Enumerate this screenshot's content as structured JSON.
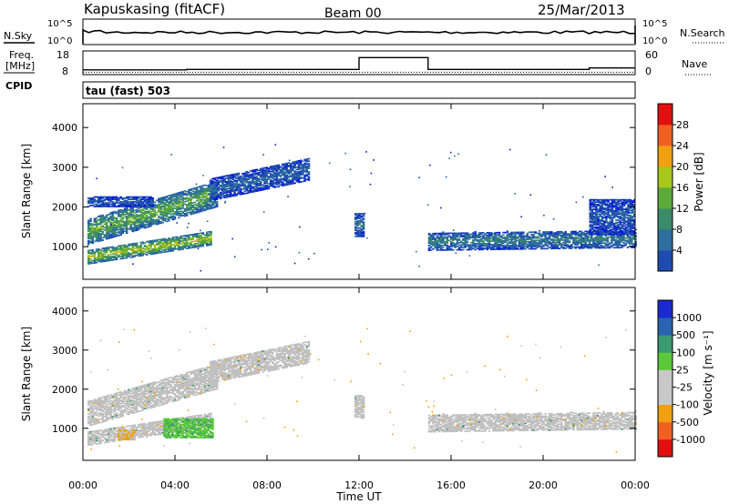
{
  "header": {
    "station": "Kapuskasing (fitACF)",
    "beam": "Beam 00",
    "date": "25/Mar/2013"
  },
  "strips": {
    "nsky_label": "N.Sky",
    "nsearch_label": "N.Search",
    "noise_ticks": [
      "10^5",
      "10^0"
    ],
    "freq_label_1": "Freq.",
    "freq_label_2": "[MHz]",
    "freq_ticks": [
      "18",
      "8"
    ],
    "nave_label": "Nave",
    "nave_ticks": [
      "60",
      "0"
    ],
    "cpid_label": "CPID",
    "cpid_text": "tau (fast) 503"
  },
  "colors": {
    "power_scale": [
      "#0a1ad8",
      "#1f4bb0",
      "#2e6fa0",
      "#3b8a6a",
      "#5cab3a",
      "#a8c81c",
      "#f0a010",
      "#f06020",
      "#e01010"
    ],
    "velocity_scale": [
      "#e01010",
      "#f06020",
      "#f0a010",
      "#c8c8c8",
      "#c8c8c8",
      "#5cc83a",
      "#3a9a70",
      "#2a64b0",
      "#1a2ad0"
    ],
    "ground_scatter": "#c0c0c0"
  },
  "chart_data": [
    {
      "type": "line",
      "name": "noise",
      "series": [
        {
          "name": "N.Sky",
          "style": "solid"
        },
        {
          "name": "N.Search",
          "style": "dotted"
        }
      ],
      "yticks": [
        "10^0",
        "10^5"
      ],
      "note": "noise nearly constant at high level through the day"
    },
    {
      "type": "line",
      "name": "freq-nave",
      "series": [
        {
          "name": "Freq",
          "unit": "MHz",
          "x": [
            0,
            4.5,
            4.5,
            12.0,
            12.0,
            15.0,
            15.0,
            22.0,
            22.0,
            24.0
          ],
          "y": [
            10.0,
            10.0,
            10.2,
            10.2,
            15.2,
            15.2,
            10.2,
            10.2,
            10.8,
            10.8
          ]
        },
        {
          "name": "Nave",
          "style": "dotted",
          "x": [
            0,
            24
          ],
          "y": [
            6,
            6
          ]
        }
      ],
      "ylim_freq": [
        8,
        18
      ],
      "ylim_nave": [
        0,
        60
      ]
    },
    {
      "type": "heatmap",
      "name": "power",
      "xlabel": "",
      "ylabel": "Slant Range [km]",
      "xlim": [
        0,
        24
      ],
      "ylim": [
        180,
        4600
      ],
      "yticks": [
        1000,
        2000,
        3000,
        4000
      ],
      "colorbar_label": "Power [dB]",
      "colorbar_ticks": [
        4,
        8,
        12,
        16,
        20,
        24,
        28
      ],
      "regions": [
        {
          "x0": 0.2,
          "x1": 5.8,
          "r0": 1050,
          "r1": 1700,
          "slope": 170,
          "level": 14
        },
        {
          "x0": 0.2,
          "x1": 5.6,
          "r0": 560,
          "r1": 900,
          "slope": 90,
          "level": 18
        },
        {
          "x0": 5.5,
          "x1": 9.8,
          "r0": 2150,
          "r1": 2700,
          "slope": 120,
          "level": 6
        },
        {
          "x0": 0.2,
          "x1": 3.0,
          "r0": 2000,
          "r1": 2250,
          "slope": 0,
          "level": 5
        },
        {
          "x0": 11.8,
          "x1": 12.2,
          "r0": 1250,
          "r1": 1850,
          "slope": 0,
          "level": 8
        },
        {
          "x0": 15.0,
          "x1": 24.0,
          "r0": 900,
          "r1": 1350,
          "slope": 8,
          "level": 9
        },
        {
          "x0": 22.0,
          "x1": 24.0,
          "r0": 1300,
          "r1": 2200,
          "slope": 0,
          "level": 5
        }
      ]
    },
    {
      "type": "heatmap",
      "name": "velocity",
      "xlabel": "Time UT",
      "ylabel": "Slant Range [km]",
      "xlim": [
        0,
        24
      ],
      "ylim": [
        180,
        4600
      ],
      "xticks": [
        "00:00",
        "04:00",
        "08:00",
        "12:00",
        "16:00",
        "20:00",
        "00:00"
      ],
      "yticks": [
        1000,
        2000,
        3000,
        4000
      ],
      "colorbar_label": "Velocity [m s⁻¹]",
      "colorbar_ticks": [
        -1000,
        -500,
        -100,
        -25,
        25,
        100,
        500,
        1000
      ],
      "regions": [
        {
          "x0": 0.2,
          "x1": 5.8,
          "r0": 1050,
          "r1": 1700,
          "slope": 170,
          "kind": "ground"
        },
        {
          "x0": 0.2,
          "x1": 5.6,
          "r0": 560,
          "r1": 900,
          "slope": 90,
          "kind": "ground"
        },
        {
          "x0": 3.5,
          "x1": 5.6,
          "r0": 750,
          "r1": 1250,
          "slope": 0,
          "kind": "green"
        },
        {
          "x0": 1.5,
          "x1": 2.2,
          "r0": 700,
          "r1": 950,
          "slope": 0,
          "kind": "orange"
        },
        {
          "x0": 5.5,
          "x1": 9.8,
          "r0": 2150,
          "r1": 2700,
          "slope": 120,
          "kind": "ground"
        },
        {
          "x0": 11.8,
          "x1": 12.2,
          "r0": 1250,
          "r1": 1850,
          "slope": 0,
          "kind": "ground"
        },
        {
          "x0": 15.0,
          "x1": 24.0,
          "r0": 900,
          "r1": 1350,
          "slope": 8,
          "kind": "ground"
        }
      ]
    }
  ]
}
